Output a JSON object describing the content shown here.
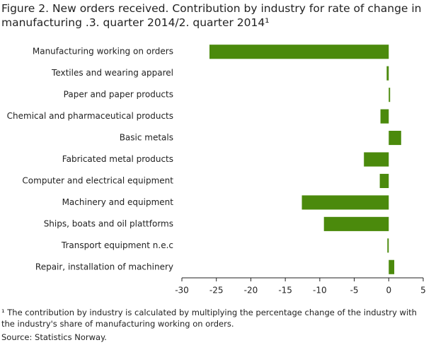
{
  "chart_data": {
    "type": "barh",
    "title": "Figure 2. New orders received. Contribution by industry for rate of change in manufacturing .3. quarter 2014/2. quarter 2014¹",
    "categories": [
      "Manufacturing working on orders",
      "Textiles and wearing apparel",
      "Paper and paper products",
      "Chemical and pharmaceutical products",
      "Basic metals",
      "Fabricated metal products",
      "Computer and electrical equipment",
      "Machinery and equipment",
      "Ships, boats and oil plattforms",
      "Transport equipment n.e.c",
      "Repair, installation of machinery"
    ],
    "values": [
      -26.0,
      -0.3,
      0.2,
      -1.2,
      1.8,
      -3.6,
      -1.3,
      -12.6,
      -9.4,
      -0.2,
      0.8
    ],
    "color": "#4b8a0c",
    "xlim": [
      -30,
      5
    ],
    "xticks": [
      -30,
      -25,
      -20,
      -15,
      -10,
      -5,
      0,
      5
    ],
    "grid": false,
    "footnote": "¹ The contribution by industry is calculated by multiplying the percentage change of the industry with the industry's share of manufacturing working on orders.",
    "source": "Source: Statistics Norway."
  }
}
